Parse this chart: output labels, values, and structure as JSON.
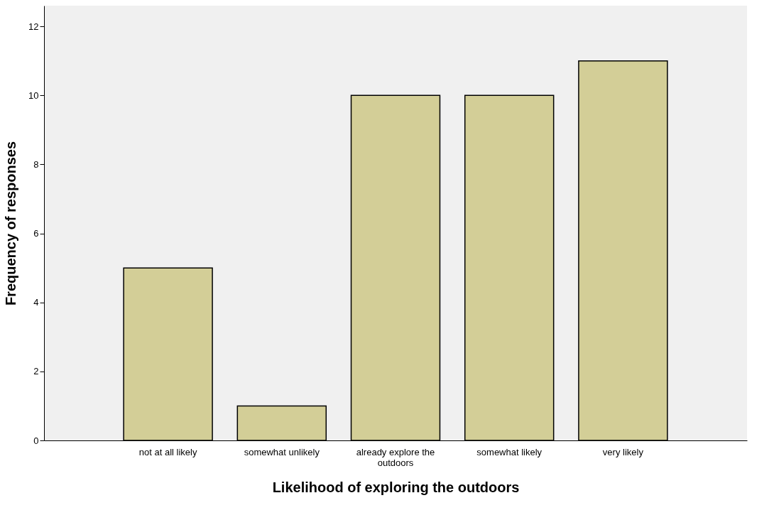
{
  "chart_data": {
    "type": "bar",
    "xlabel": "Likelihood of exploring the outdoors",
    "ylabel": "Frequency of responses",
    "categories": [
      "not at all likely",
      "somewhat unlikely",
      "already explore the outdoors",
      "somewhat likely",
      "very likely"
    ],
    "values": [
      5,
      1,
      10,
      10,
      11
    ],
    "color": "#d3ce97",
    "ylim": [
      0,
      12.6
    ],
    "yticks": [
      0,
      2,
      4,
      6,
      8,
      10,
      12
    ],
    "grid": false
  }
}
